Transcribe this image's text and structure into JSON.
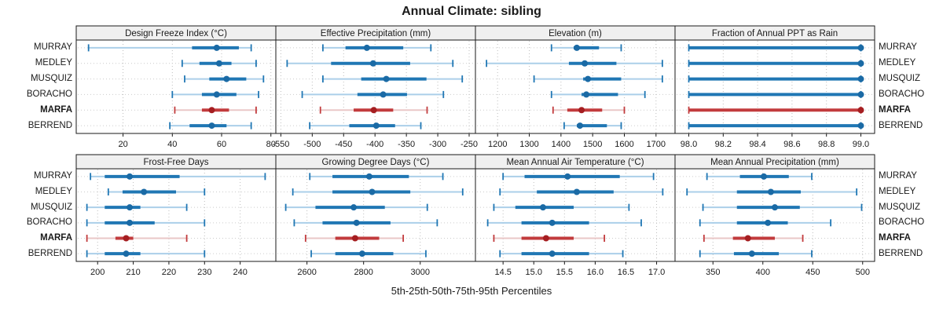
{
  "title": "Annual Climate: sibling",
  "caption": "5th-25th-50th-75th-95th Percentiles",
  "colors": {
    "blue": "#2077b4",
    "blue_dot": "#1a6aa5",
    "blue_pale": "#abcfe9",
    "red": "#c23b3d",
    "red_dot": "#a51e21",
    "red_pale": "#eac7c7",
    "grid": "#bdbdbd",
    "row_guide": "#cccccc",
    "header_bg": "#f0f0f0",
    "border": "#1a1a1a"
  },
  "chart_data": {
    "type": "dotplot-intervals",
    "layout": "2x4",
    "percentiles": [
      5,
      25,
      50,
      75,
      95
    ],
    "stations": [
      "MURRAY",
      "MEDLEY",
      "MUSQUIZ",
      "BORACHO",
      "MARFA",
      "BERREND"
    ],
    "highlight": "MARFA",
    "panels": [
      {
        "title": "Design Freeze Index (°C)",
        "xlim": [
          1,
          82
        ],
        "tick_values": [
          20,
          40,
          60,
          80
        ],
        "tick_labels": [
          "20",
          "40",
          "60",
          "80"
        ],
        "values": {
          "MURRAY": [
            6,
            48,
            58,
            67,
            72
          ],
          "MEDLEY": [
            44,
            51,
            59,
            64,
            74
          ],
          "MUSQUIZ": [
            45,
            55,
            62,
            70,
            77
          ],
          "BORACHO": [
            40,
            52,
            58,
            66,
            75
          ],
          "MARFA": [
            41,
            52,
            56,
            63,
            74
          ],
          "BERREND": [
            39,
            47,
            56,
            62,
            72
          ]
        }
      },
      {
        "title": "Effective Precipitation (mm)",
        "xlim": [
          -558,
          -240
        ],
        "tick_values": [
          -550,
          -500,
          -450,
          -400,
          -350,
          -300,
          -250
        ],
        "tick_labels": [
          "-550",
          "-500",
          "-450",
          "-400",
          "-350",
          "-300",
          "-250"
        ],
        "values": {
          "MURRAY": [
            -483,
            -447,
            -413,
            -355,
            -311
          ],
          "MEDLEY": [
            -540,
            -470,
            -403,
            -344,
            -276
          ],
          "MUSQUIZ": [
            -483,
            -422,
            -382,
            -318,
            -261
          ],
          "BORACHO": [
            -516,
            -428,
            -387,
            -349,
            -291
          ],
          "MARFA": [
            -487,
            -434,
            -402,
            -371,
            -317
          ],
          "BERREND": [
            -504,
            -441,
            -398,
            -368,
            -327
          ]
        }
      },
      {
        "title": "Elevation (m)",
        "xlim": [
          1130,
          1760
        ],
        "tick_values": [
          1200,
          1300,
          1400,
          1500,
          1600,
          1700
        ],
        "tick_labels": [
          "1200",
          "1300",
          "1400",
          "1500",
          "1600",
          "1700"
        ],
        "values": {
          "MURRAY": [
            1370,
            1440,
            1450,
            1520,
            1590
          ],
          "MEDLEY": [
            1165,
            1425,
            1475,
            1575,
            1720
          ],
          "MUSQUIZ": [
            1315,
            1470,
            1485,
            1590,
            1720
          ],
          "BORACHO": [
            1370,
            1465,
            1480,
            1580,
            1665
          ],
          "MARFA": [
            1375,
            1420,
            1465,
            1530,
            1600
          ],
          "BERREND": [
            1410,
            1450,
            1460,
            1545,
            1590
          ]
        }
      },
      {
        "title": "Fraction of Annual PPT as Rain",
        "xlim": [
          97.92,
          99.08
        ],
        "tick_values": [
          98.0,
          98.2,
          98.4,
          98.6,
          98.8,
          99.0
        ],
        "tick_labels": [
          "98.0",
          "98.2",
          "98.4",
          "98.6",
          "98.8",
          "99.0"
        ],
        "values": {
          "MURRAY": [
            98.0,
            98.0,
            99.0,
            99.0,
            99.0
          ],
          "MEDLEY": [
            98.0,
            98.0,
            99.0,
            99.0,
            99.0
          ],
          "MUSQUIZ": [
            98.0,
            98.0,
            99.0,
            99.0,
            99.0
          ],
          "BORACHO": [
            98.0,
            98.0,
            99.0,
            99.0,
            99.0
          ],
          "MARFA": [
            98.0,
            98.0,
            99.0,
            99.0,
            99.0
          ],
          "BERREND": [
            98.0,
            98.0,
            99.0,
            99.0,
            99.0
          ]
        }
      },
      {
        "title": "Frost-Free Days",
        "xlim": [
          194,
          250
        ],
        "tick_values": [
          200,
          210,
          220,
          230,
          240
        ],
        "tick_labels": [
          "200",
          "210",
          "220",
          "230",
          "240"
        ],
        "values": {
          "MURRAY": [
            198,
            202,
            209,
            223,
            247
          ],
          "MEDLEY": [
            203,
            207,
            213,
            222,
            230
          ],
          "MUSQUIZ": [
            197,
            202,
            209,
            212,
            225
          ],
          "BORACHO": [
            197,
            202,
            209,
            216,
            230
          ],
          "MARFA": [
            197,
            205,
            208,
            210,
            225
          ],
          "BERREND": [
            197,
            202,
            208,
            212,
            230
          ]
        }
      },
      {
        "title": "Growing Degree Days (°C)",
        "xlim": [
          2490,
          3195
        ],
        "tick_values": [
          2600,
          2800,
          3000
        ],
        "tick_labels": [
          "2600",
          "2800",
          "3000"
        ],
        "values": {
          "MURRAY": [
            2610,
            2690,
            2820,
            2960,
            3080
          ],
          "MEDLEY": [
            2550,
            2690,
            2830,
            2965,
            3150
          ],
          "MUSQUIZ": [
            2525,
            2630,
            2765,
            2875,
            3025
          ],
          "BORACHO": [
            2555,
            2655,
            2775,
            2895,
            3060
          ],
          "MARFA": [
            2595,
            2700,
            2770,
            2855,
            2940
          ],
          "BERREND": [
            2615,
            2700,
            2795,
            2905,
            3020
          ]
        }
      },
      {
        "title": "Mean Annual Air Temperature (°C)",
        "xlim": [
          14.05,
          17.3
        ],
        "tick_values": [
          14.5,
          15.0,
          15.5,
          16.0,
          16.5,
          17.0
        ],
        "tick_labels": [
          "14.5",
          "15.0",
          "15.5",
          "16.0",
          "16.5",
          "17.0"
        ],
        "values": {
          "MURRAY": [
            14.5,
            14.85,
            15.55,
            16.4,
            16.95
          ],
          "MEDLEY": [
            14.45,
            15.05,
            15.7,
            16.3,
            17.1
          ],
          "MUSQUIZ": [
            14.35,
            14.7,
            15.15,
            15.65,
            16.55
          ],
          "BORACHO": [
            14.25,
            14.8,
            15.3,
            15.9,
            16.75
          ],
          "MARFA": [
            14.35,
            14.8,
            15.2,
            15.65,
            16.15
          ],
          "BERREND": [
            14.45,
            14.8,
            15.3,
            15.9,
            16.45
          ]
        }
      },
      {
        "title": "Mean Annual Precipitation (mm)",
        "xlim": [
          312,
          512
        ],
        "tick_values": [
          350,
          400,
          450,
          500
        ],
        "tick_labels": [
          "350",
          "400",
          "450",
          "500"
        ],
        "values": {
          "MURRAY": [
            344,
            377,
            401,
            426,
            449
          ],
          "MEDLEY": [
            324,
            374,
            408,
            438,
            494
          ],
          "MUSQUIZ": [
            340,
            374,
            412,
            437,
            499
          ],
          "BORACHO": [
            337,
            374,
            405,
            425,
            468
          ],
          "MARFA": [
            341,
            370,
            385,
            412,
            440
          ],
          "BERREND": [
            337,
            371,
            389,
            416,
            449
          ]
        }
      }
    ]
  }
}
